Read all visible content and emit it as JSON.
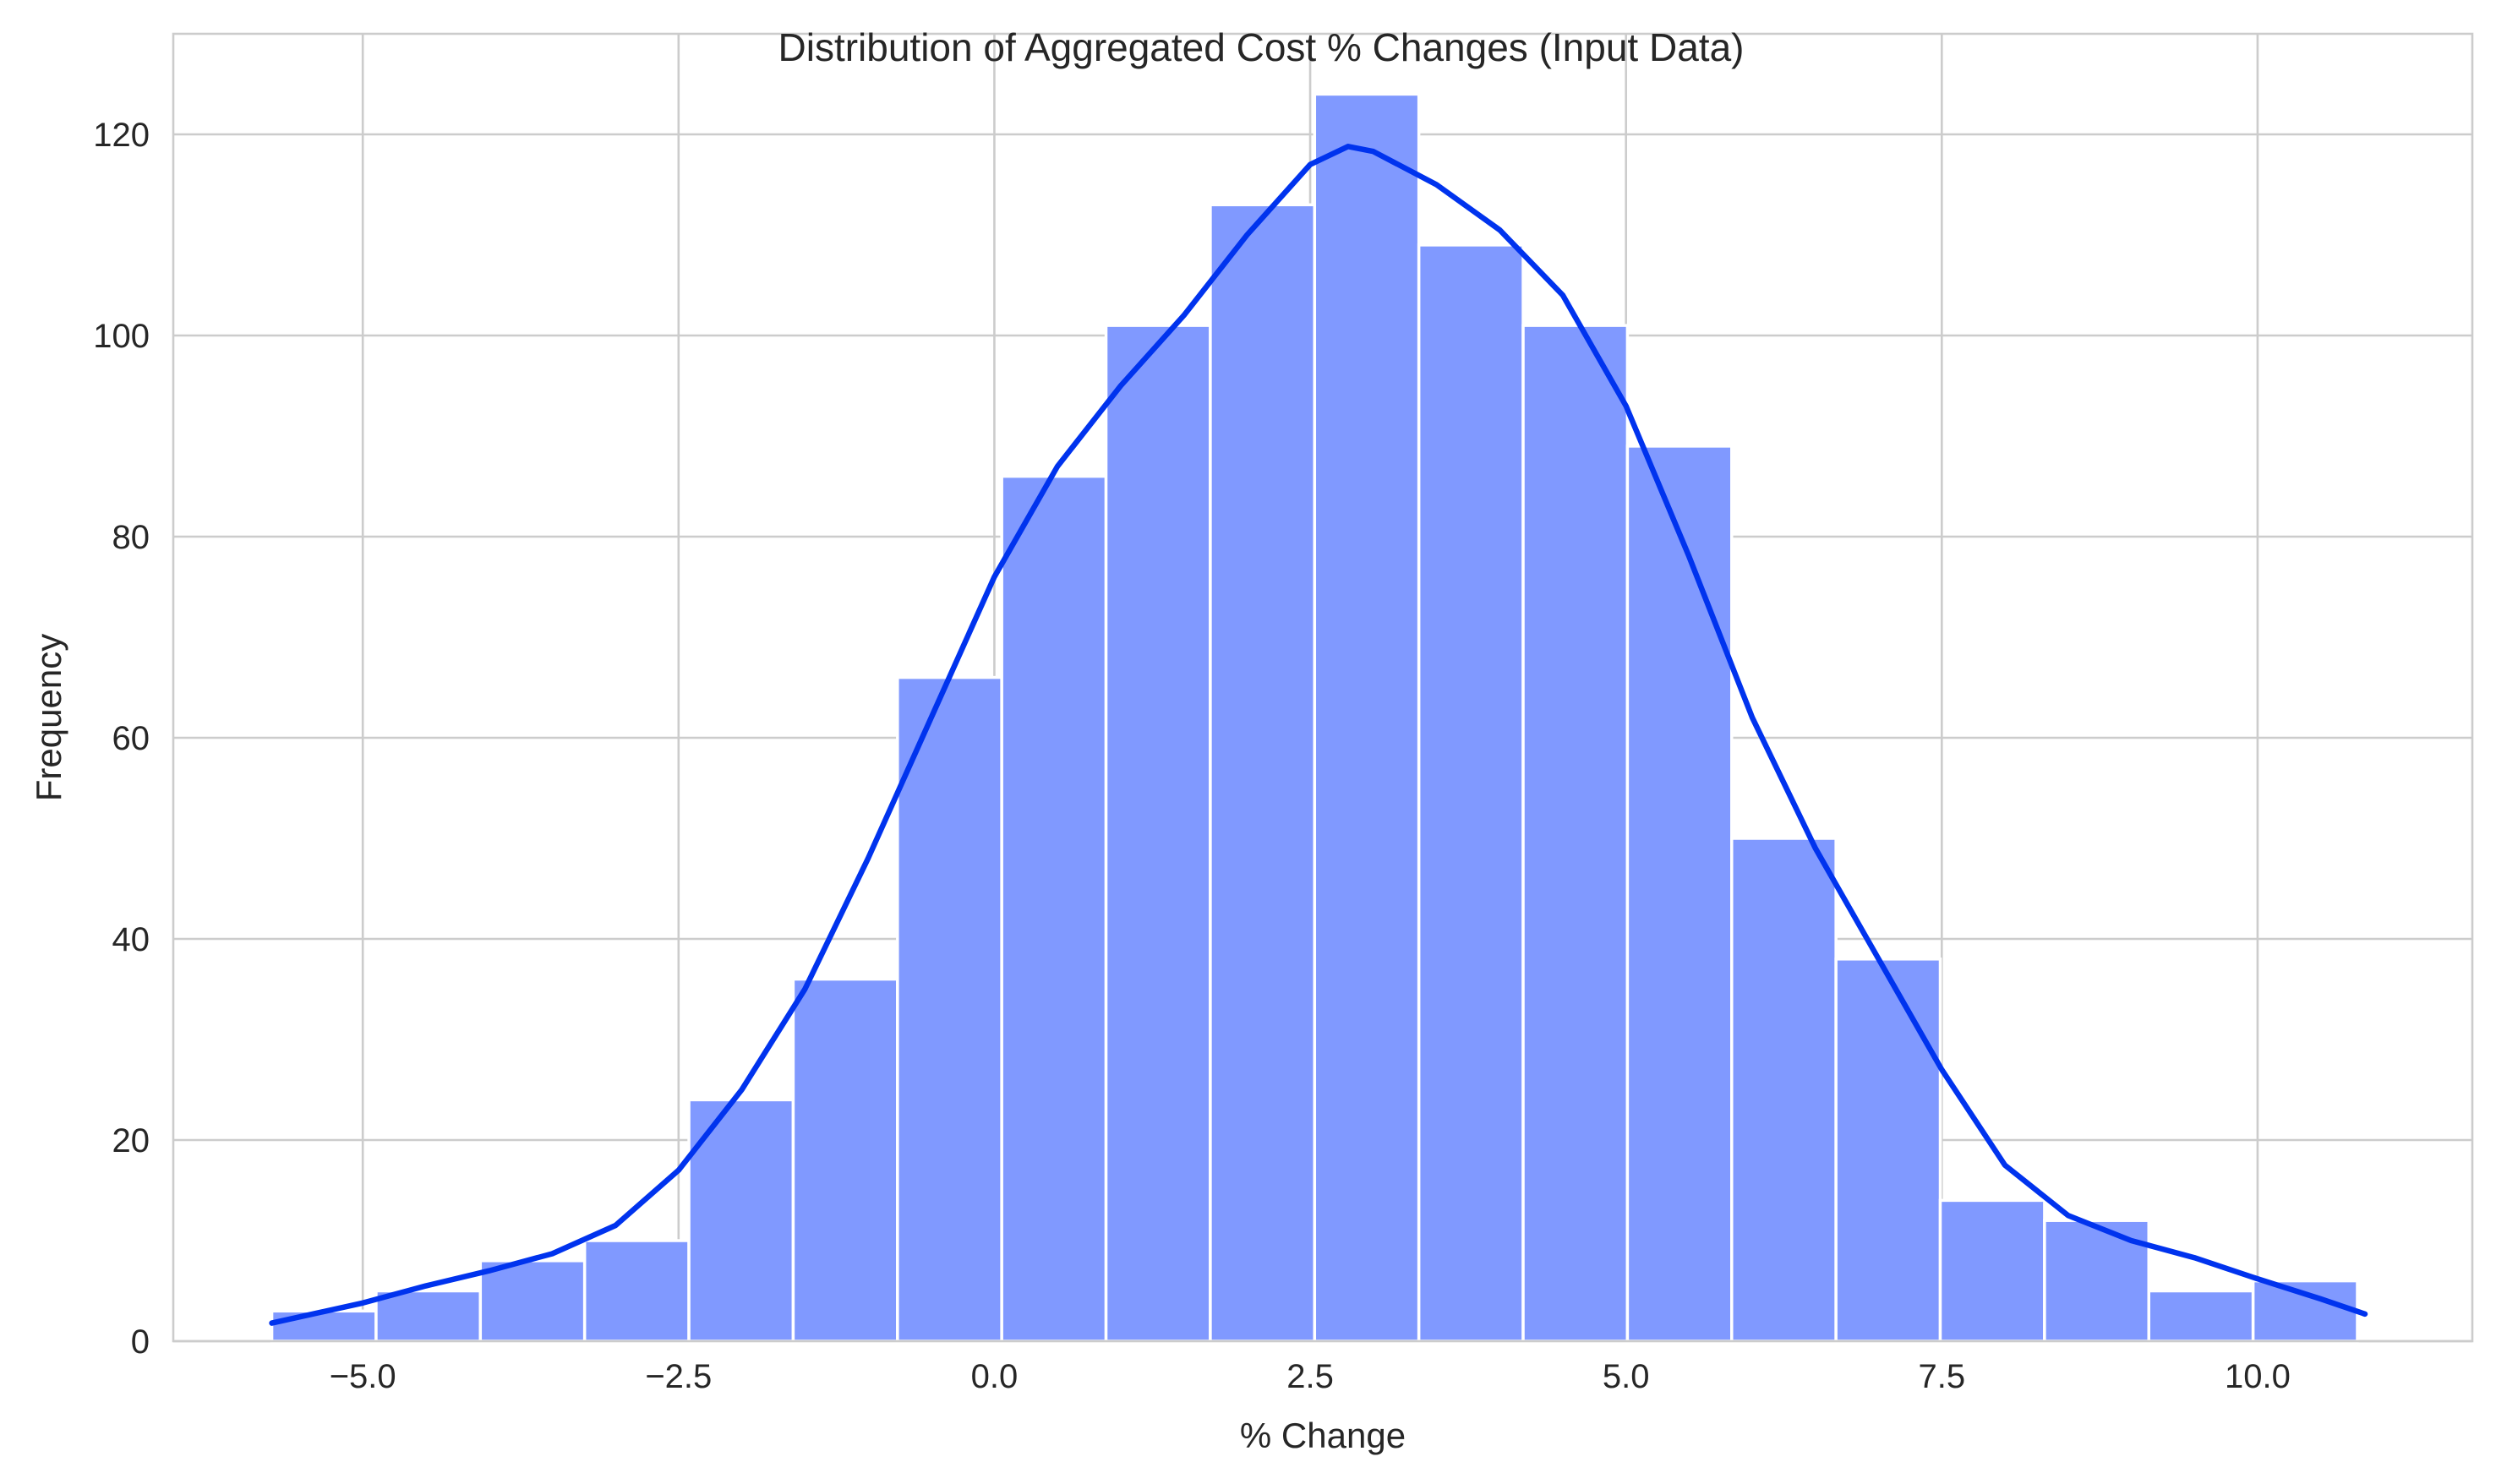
{
  "chart_data": {
    "type": "bar",
    "subtype": "histogram-with-kde",
    "title": "Distribution of Aggregated Cost % Changes (Input Data)",
    "xlabel": "% Change",
    "ylabel": "Frequency",
    "xlim": [
      -6.5,
      11.7
    ],
    "ylim": [
      0,
      130
    ],
    "grid": true,
    "legend": "none",
    "x_ticks": [
      -5.0,
      -2.5,
      0.0,
      2.5,
      5.0,
      7.5,
      10.0
    ],
    "x_tick_labels": [
      "−5.0",
      "−2.5",
      "0.0",
      "2.5",
      "5.0",
      "7.5",
      "10.0"
    ],
    "y_ticks": [
      0,
      20,
      40,
      60,
      80,
      100,
      120
    ],
    "y_tick_labels": [
      "0",
      "20",
      "40",
      "60",
      "80",
      "100",
      "120"
    ],
    "bins": {
      "start": -5.72,
      "width": 0.8255,
      "counts": [
        3,
        5,
        8,
        10,
        24,
        36,
        66,
        86,
        101,
        113,
        124,
        109,
        101,
        89,
        50,
        38,
        14,
        12,
        5,
        6
      ]
    },
    "kde": {
      "x": [
        -5.72,
        -5.0,
        -4.5,
        -4.0,
        -3.5,
        -3.0,
        -2.5,
        -2.0,
        -1.5,
        -1.0,
        -0.5,
        0.0,
        0.5,
        1.0,
        1.5,
        2.0,
        2.5,
        2.8,
        3.0,
        3.5,
        4.0,
        4.5,
        5.0,
        5.5,
        6.0,
        6.5,
        7.0,
        7.5,
        8.0,
        8.5,
        9.0,
        9.5,
        10.0,
        10.5,
        10.85
      ],
      "y": [
        1.8,
        3.8,
        5.5,
        7.0,
        8.7,
        11.5,
        17.0,
        25.0,
        35.0,
        48.0,
        62.0,
        76.0,
        87.0,
        95.0,
        102.0,
        110.0,
        117.0,
        118.8,
        118.3,
        115.0,
        110.5,
        104.0,
        93.0,
        78.0,
        62.0,
        49.0,
        38.0,
        27.0,
        17.5,
        12.5,
        10.0,
        8.3,
        6.2,
        4.2,
        2.7
      ]
    },
    "colors": {
      "bar_fill": "#8099ff",
      "kde_line": "#0033ee",
      "grid": "#cccccc",
      "text": "#262626"
    }
  }
}
